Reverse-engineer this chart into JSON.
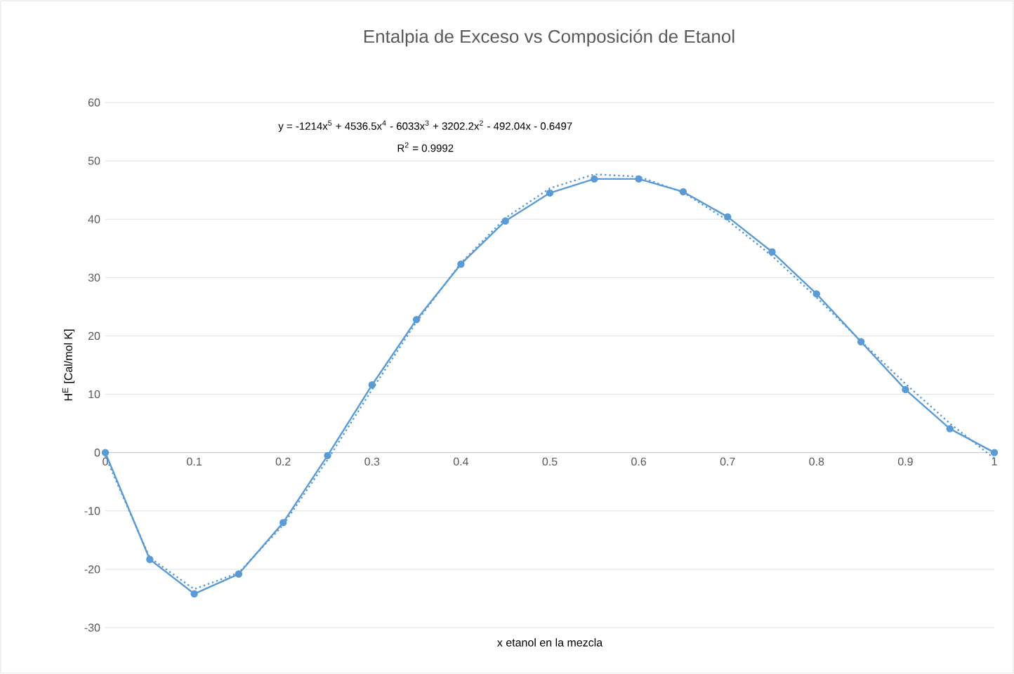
{
  "chart_data": {
    "type": "line",
    "title": "Entalpia de Exceso vs Composición de Etanol",
    "xlabel": "x etanol en la mezcla",
    "ylabel": "H$^{E}$ [Cal/mol K]",
    "annotations": [
      "y = -1214x$^{5}$ + 4536.5x$^{4}$ - 6033x$^{3}$ + 3202.2x$^{2}$ - 492.04x - 0.6497",
      "R$^{2}$ = 0.9992"
    ],
    "x": [
      0,
      0.05,
      0.1,
      0.15,
      0.2,
      0.25,
      0.3,
      0.35,
      0.4,
      0.45,
      0.5,
      0.55,
      0.6,
      0.65,
      0.7,
      0.75,
      0.8,
      0.85,
      0.9,
      0.95,
      1
    ],
    "series": [
      {
        "color": "#5b9bd5",
        "marker": "circle",
        "line_style": "solid",
        "values": [
          0,
          -18.3,
          -24.2,
          -20.8,
          -12.0,
          -0.5,
          11.6,
          22.8,
          32.3,
          39.7,
          44.5,
          46.9,
          46.9,
          44.7,
          40.4,
          34.4,
          27.2,
          19.0,
          10.8,
          4.1,
          0
        ]
      },
      {
        "type": "line",
        "color": "#5b9bd5",
        "marker": "none",
        "line_style": "dotted",
        "values": [
          -0.6,
          -18.0,
          -23.4,
          -20.6,
          -12.4,
          -1.2,
          10.8,
          22.4,
          32.5,
          40.2,
          45.3,
          47.7,
          47.3,
          44.6,
          39.8,
          33.7,
          26.6,
          19.1,
          11.8,
          5.0,
          -1.0
        ]
      }
    ],
    "xlim": [
      0,
      1
    ],
    "xticks": [
      0,
      0.1,
      0.2,
      0.3,
      0.4,
      0.5,
      0.6,
      0.7,
      0.8,
      0.9,
      1
    ],
    "ylim": [
      -30,
      60
    ],
    "yticks": [
      -30,
      -20,
      -10,
      0,
      10,
      20,
      30,
      40,
      50,
      60
    ],
    "grid": "y"
  }
}
